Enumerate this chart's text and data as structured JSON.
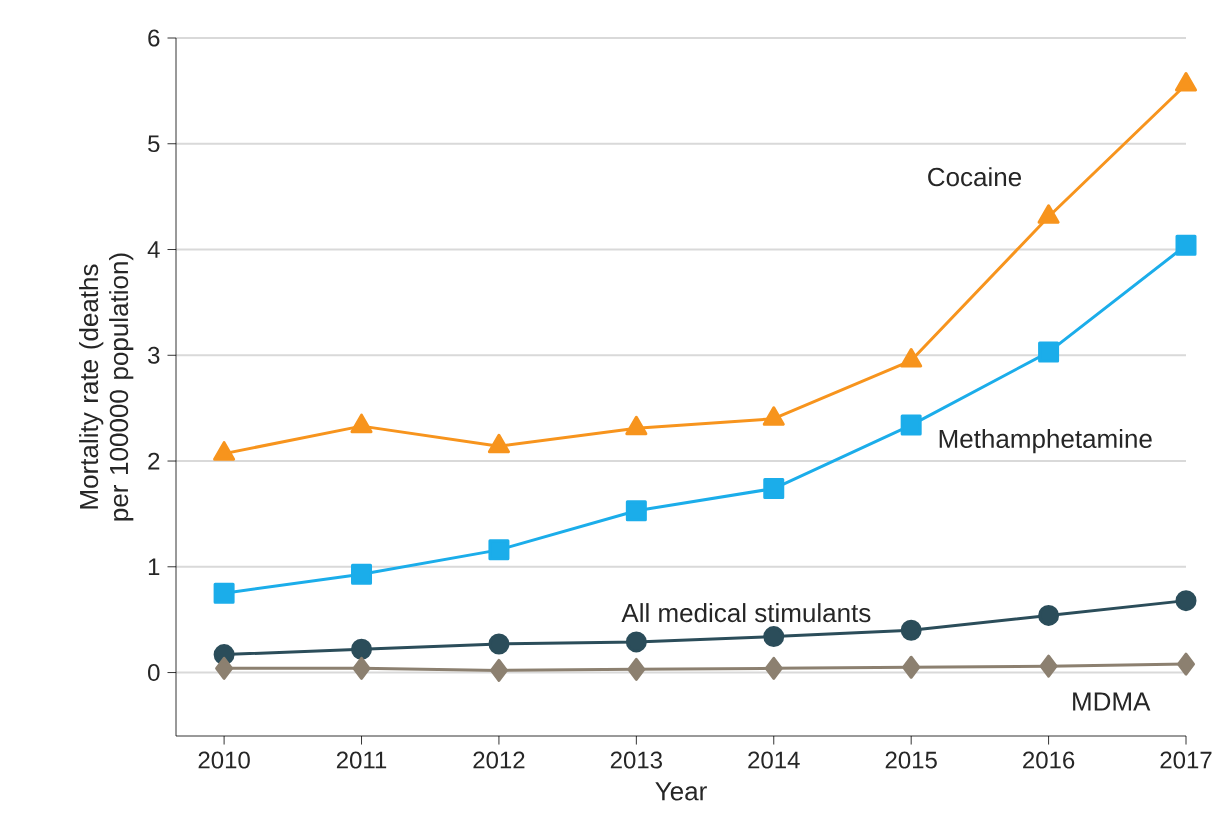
{
  "chart_data": {
    "type": "line",
    "xlabel": "Year",
    "ylabel": "Mortality rate (deaths per 100000 population)",
    "x": [
      2010,
      2011,
      2012,
      2013,
      2014,
      2015,
      2016,
      2017
    ],
    "xlim": [
      2009.65,
      2017
    ],
    "xticks": [
      2010,
      2011,
      2012,
      2013,
      2014,
      2015,
      2016,
      2017
    ],
    "ylim": [
      -0.6,
      6
    ],
    "yticks": [
      0,
      1,
      2,
      3,
      4,
      5,
      6
    ],
    "grid": "y",
    "legend": false,
    "line_style": "solid",
    "series": [
      {
        "name": "Cocaine",
        "color": "#f7941d",
        "marker": "triangle",
        "values": [
          2.07,
          2.33,
          2.14,
          2.31,
          2.4,
          2.95,
          4.31,
          5.56
        ]
      },
      {
        "name": "Methamphetamine",
        "color": "#1badea",
        "marker": "square",
        "values": [
          0.75,
          0.93,
          1.16,
          1.53,
          1.74,
          2.34,
          3.03,
          4.04
        ]
      },
      {
        "name": "All medical stimulants",
        "color": "#2b4d5a",
        "marker": "circle",
        "values": [
          0.17,
          0.22,
          0.27,
          0.29,
          0.34,
          0.4,
          0.54,
          0.68
        ]
      },
      {
        "name": "MDMA",
        "color": "#8c8070",
        "marker": "diamond",
        "values": [
          0.04,
          0.04,
          0.02,
          0.03,
          0.04,
          0.05,
          0.06,
          0.08
        ]
      }
    ]
  }
}
